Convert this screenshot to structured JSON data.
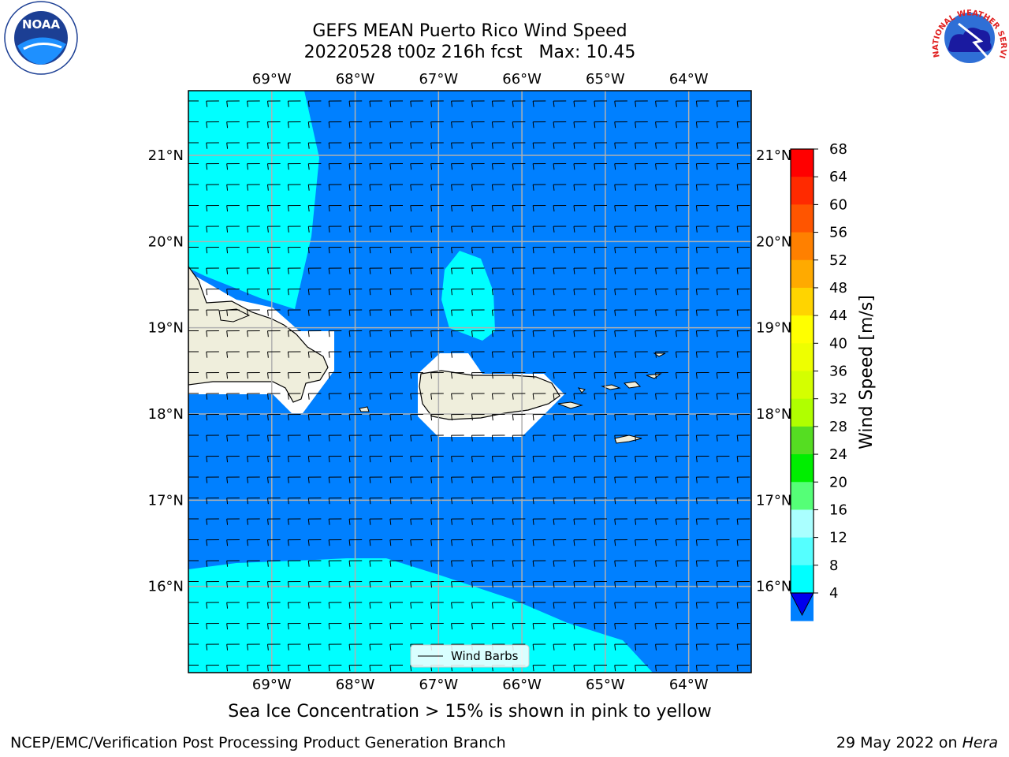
{
  "title": {
    "line1": "GEFS MEAN Puerto Rico Wind Speed",
    "line2": "20220528 t00z 216h fcst   Max: 10.45"
  },
  "caption": "Sea Ice Concentration > 15% is shown in pink to yellow",
  "footer": {
    "left": "NCEP/EMC/Verification Post Processing Product Generation Branch",
    "right_date": "29 May 2022 on ",
    "right_machine": "Hera"
  },
  "map": {
    "lon_ticks": [
      "69°W",
      "68°W",
      "67°W",
      "66°W",
      "65°W",
      "64°W"
    ],
    "lat_ticks": [
      "21°N",
      "20°N",
      "19°N",
      "18°N",
      "17°N",
      "16°N"
    ],
    "lon_values": [
      -69,
      -68,
      -67,
      -66,
      -65,
      -64
    ],
    "lat_values": [
      21,
      20,
      19,
      18,
      17,
      16
    ],
    "extent": {
      "lon_min": -70,
      "lon_max": -63.25,
      "lat_min": 15,
      "lat_max": 21.75
    },
    "legend_label": "Wind Barbs",
    "colors": {
      "ocean_4_8": "#0080ff",
      "ocean_8_12": "#00ffff",
      "land": "#efeedc",
      "grid": "#b0b0b0"
    }
  },
  "colorbar": {
    "label": "Wind Speed [m/s]",
    "ticks": [
      "68",
      "64",
      "60",
      "56",
      "52",
      "48",
      "44",
      "40",
      "36",
      "32",
      "28",
      "24",
      "20",
      "16",
      "12",
      "8",
      "4"
    ],
    "colors": [
      "#ff0000",
      "#ff2a00",
      "#ff5500",
      "#ff8000",
      "#ffaa00",
      "#ffd400",
      "#ffff00",
      "#eeff00",
      "#d4ff00",
      "#b0ff00",
      "#55dd22",
      "#00ee00",
      "#55ff77",
      "#aaffff",
      "#55ffff",
      "#00ffff",
      "#0080ff"
    ],
    "extend_color": "#0000ee"
  },
  "logos": {
    "noaa": "NOAA",
    "nws_text": "NATIONAL WEATHER SERVICE"
  }
}
